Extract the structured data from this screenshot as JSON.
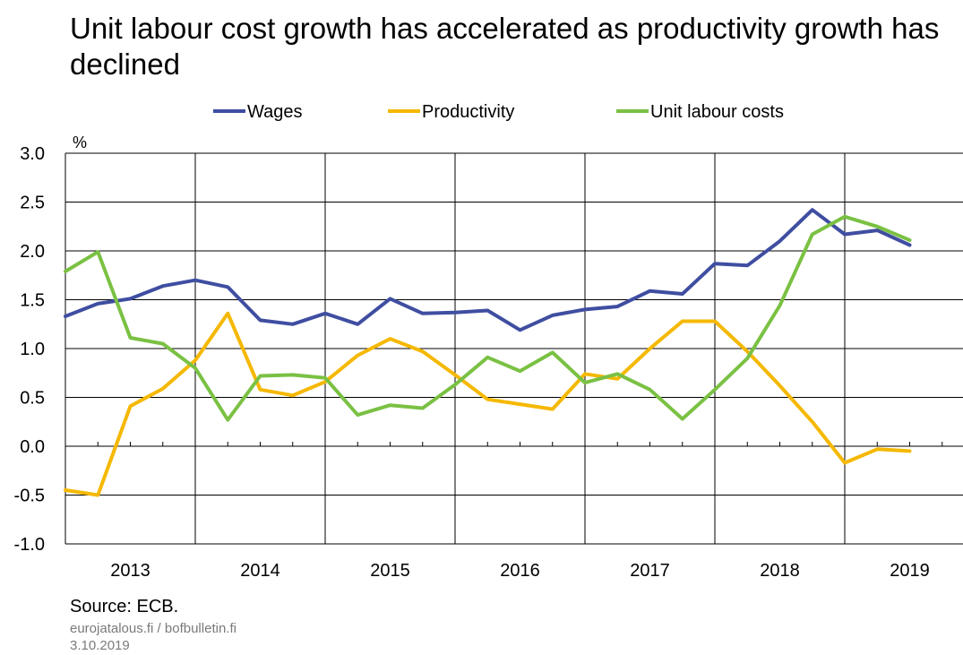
{
  "chart_data": {
    "type": "line",
    "title": "Unit labour cost growth has accelerated as productivity growth has declined",
    "ylabel": "%",
    "xlabel": "",
    "ylim": [
      -1.0,
      3.0
    ],
    "yticks": [
      "3.0",
      "2.5",
      "2.0",
      "1.5",
      "1.0",
      "0.5",
      "0.0",
      "-0.5",
      "-1.0"
    ],
    "xticks": [
      "2013",
      "2014",
      "2015",
      "2016",
      "2017",
      "2018",
      "2019"
    ],
    "grid": true,
    "legend_position": "top",
    "x": [
      "2013 Q1",
      "2013 Q2",
      "2013 Q3",
      "2013 Q4",
      "2014 Q1",
      "2014 Q2",
      "2014 Q3",
      "2014 Q4",
      "2015 Q1",
      "2015 Q2",
      "2015 Q3",
      "2015 Q4",
      "2016 Q1",
      "2016 Q2",
      "2016 Q3",
      "2016 Q4",
      "2017 Q1",
      "2017 Q2",
      "2017 Q3",
      "2017 Q4",
      "2018 Q1",
      "2018 Q2",
      "2018 Q3",
      "2018 Q4",
      "2019 Q1",
      "2019 Q2",
      "2019 Q3"
    ],
    "series": [
      {
        "name": "Wages",
        "color": "#3f4ea1",
        "values": [
          1.33,
          1.46,
          1.51,
          1.64,
          1.7,
          1.63,
          1.29,
          1.25,
          1.36,
          1.25,
          1.51,
          1.36,
          1.37,
          1.39,
          1.19,
          1.34,
          1.4,
          1.43,
          1.59,
          1.56,
          1.87,
          1.85,
          2.1,
          2.42,
          2.17,
          2.21,
          2.06
        ]
      },
      {
        "name": "Productivity",
        "color": "#f5b800",
        "values": [
          -0.45,
          -0.5,
          0.41,
          0.59,
          0.88,
          1.36,
          0.58,
          0.52,
          0.66,
          0.93,
          1.1,
          0.97,
          0.73,
          0.48,
          0.43,
          0.38,
          0.74,
          0.69,
          1.0,
          1.28,
          1.28,
          0.97,
          0.62,
          0.25,
          -0.17,
          -0.03,
          -0.05
        ]
      },
      {
        "name": "Unit labour costs",
        "color": "#7ac143",
        "values": [
          1.79,
          1.99,
          1.11,
          1.05,
          0.8,
          0.27,
          0.72,
          0.73,
          0.7,
          0.32,
          0.42,
          0.39,
          0.63,
          0.91,
          0.77,
          0.96,
          0.65,
          0.74,
          0.58,
          0.28,
          0.58,
          0.9,
          1.44,
          2.17,
          2.35,
          2.25,
          2.11
        ]
      }
    ]
  },
  "footer": {
    "source": "Source: ECB.",
    "site": "eurojatalous.fi / bofbulletin.fi",
    "date": "3.10.2019"
  }
}
